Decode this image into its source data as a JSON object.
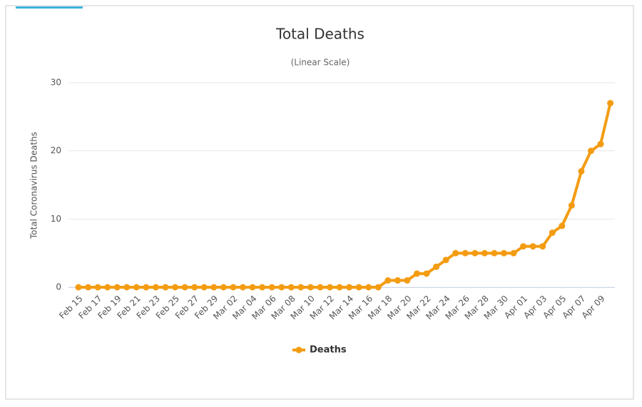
{
  "chart_data": {
    "type": "line",
    "title": "Total Deaths",
    "subtitle": "(Linear Scale)",
    "y_label": "Total Coronavirus Deaths",
    "categories": [
      "Feb 15",
      null,
      "Feb 17",
      null,
      "Feb 19",
      null,
      "Feb 21",
      null,
      "Feb 23",
      null,
      "Feb 25",
      null,
      "Feb 27",
      null,
      "Feb 29",
      null,
      "Mar 02",
      null,
      "Mar 04",
      null,
      "Mar 06",
      null,
      "Mar 08",
      null,
      "Mar 10",
      null,
      "Mar 12",
      null,
      "Mar 14",
      null,
      "Mar 16",
      null,
      "Mar 18",
      null,
      "Mar 20",
      null,
      "Mar 22",
      null,
      "Mar 24",
      null,
      "Mar 26",
      null,
      "Mar 28",
      null,
      "Mar 30",
      null,
      "Apr 01",
      null,
      "Apr 03",
      null,
      "Apr 05",
      null,
      "Apr 07",
      null,
      "Apr 09",
      null
    ],
    "series": [
      {
        "name": "Deaths",
        "color": "#f39c12",
        "values": [
          0,
          0,
          0,
          0,
          0,
          0,
          0,
          0,
          0,
          0,
          0,
          0,
          0,
          0,
          0,
          0,
          0,
          0,
          0,
          0,
          0,
          0,
          0,
          0,
          0,
          0,
          0,
          0,
          0,
          0,
          0,
          0,
          1,
          1,
          1,
          2,
          2,
          3,
          4,
          5,
          5,
          5,
          5,
          5,
          5,
          5,
          6,
          6,
          6,
          8,
          9,
          12,
          17,
          20,
          21,
          27
        ]
      }
    ],
    "ylim": [
      0,
      30
    ],
    "yticks": [
      0,
      10,
      20,
      30
    ],
    "grid": true,
    "legend": "bottom"
  }
}
